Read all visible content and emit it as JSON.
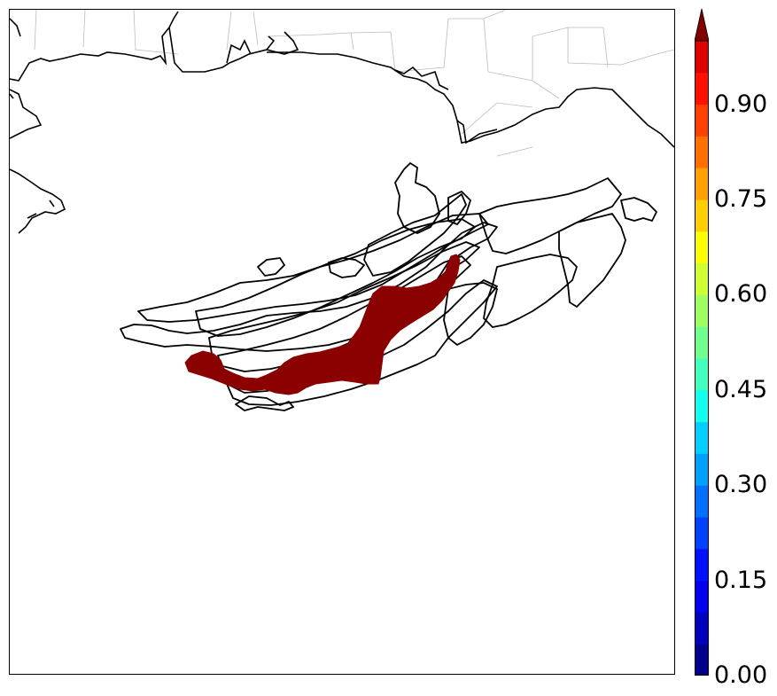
{
  "colorbar": {
    "tick_labels": [
      "0.00",
      "0.15",
      "0.30",
      "0.45",
      "0.60",
      "0.75",
      "0.90"
    ],
    "tick_values": [
      0.0,
      0.15,
      0.3,
      0.45,
      0.6,
      0.75,
      0.9
    ],
    "range": [
      0.0,
      1.0
    ],
    "extend": "max",
    "colormap": "jet",
    "bins": 20,
    "colors": [
      "#00008f",
      "#0000bf",
      "#0000ef",
      "#0010ff",
      "#0040ff",
      "#0070ff",
      "#00a0ff",
      "#00d0ff",
      "#10ffef",
      "#40ffbf",
      "#70ff8f",
      "#a0ff60",
      "#cfff30",
      "#ffff00",
      "#ffcf00",
      "#ff9f00",
      "#ff7000",
      "#ff4000",
      "#ff1000",
      "#df0000"
    ],
    "over_color": "#800000"
  },
  "map": {
    "region": "Gulf of Mexico (northern coast)",
    "highlight_color": "#8b0000",
    "contour_color": "#000000",
    "state_border_color": "#bbbbbb"
  }
}
